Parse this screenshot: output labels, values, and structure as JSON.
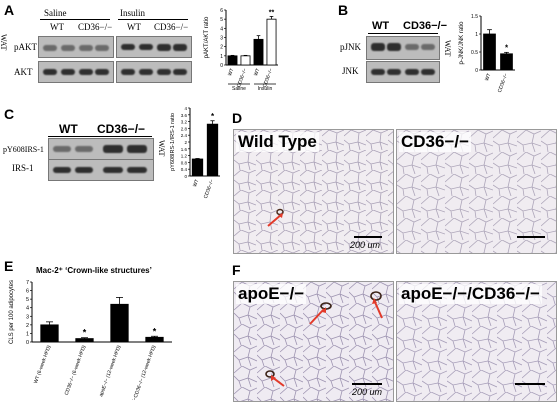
{
  "panels": {
    "A": {
      "label": "A",
      "blot_headers": [
        "Saline",
        "Insulin"
      ],
      "lane_labels": [
        "WT",
        "CD36−/−",
        "WT",
        "CD36−/−"
      ],
      "side_label": "WAT",
      "rows": [
        "pAKT",
        "AKT"
      ],
      "chart_ylabel": "pAKT/AKT ratio",
      "chart_group_labels": [
        "Saline",
        "Insulin"
      ],
      "chart_xticks": [
        "WT",
        "CD36−/−",
        "WT",
        "CD36−/−"
      ]
    },
    "B": {
      "label": "B",
      "lane_labels": [
        "WT",
        "CD36−/−"
      ],
      "side_label": "WAT",
      "rows": [
        "pJNK",
        "JNK"
      ],
      "chart_ylabel": "p-JNK/JNK ratio",
      "chart_xticks": [
        "WT",
        "CD36−/−"
      ]
    },
    "C": {
      "label": "C",
      "lane_labels": [
        "WT",
        "CD36−/−"
      ],
      "side_label": "WAT",
      "rows": [
        "pY608IRS-1",
        "IRS-1"
      ],
      "chart_ylabel": "pY608IRS-1/IRS-1 ratio",
      "chart_xticks": [
        "WT",
        "CD36−/−"
      ]
    },
    "D": {
      "label": "D",
      "titles": [
        "Wild Type",
        "CD36−/−"
      ],
      "scale_text": "200 um"
    },
    "E": {
      "label": "E",
      "title": "Mac-2⁺ ‘Crown-like structures’",
      "ylabel": "CLS per 100 adipocytes",
      "xticks": [
        "WT (6-week HFD)",
        "CD36−/− (6-week HFD)",
        "apoE−/− (12-week HFD)",
        "apoE−/−CD36−/− (12-week HFD)"
      ]
    },
    "F": {
      "label": "F",
      "titles": [
        "apoE−/−",
        "apoE−/−/CD36−/−"
      ],
      "scale_text": "200 um"
    }
  },
  "chart_data": [
    {
      "id": "A",
      "type": "bar",
      "title": "",
      "ylabel": "pAKT/AKT ratio",
      "categories": [
        "WT",
        "CD36−/−",
        "WT",
        "CD36−/−"
      ],
      "groups": [
        "Saline",
        "Saline",
        "Insulin",
        "Insulin"
      ],
      "values": [
        1.0,
        1.0,
        2.8,
        5.0
      ],
      "errors": [
        0.05,
        0.05,
        0.4,
        0.3
      ],
      "fills": [
        "#000000",
        "#ffffff",
        "#000000",
        "#ffffff"
      ],
      "ylim": [
        0,
        6
      ],
      "yticks": [
        0,
        1,
        2,
        3,
        4,
        5,
        6
      ],
      "annotations": [
        {
          "index": 3,
          "text": "**"
        }
      ]
    },
    {
      "id": "B",
      "type": "bar",
      "title": "",
      "ylabel": "p-JNK/JNK ratio",
      "categories": [
        "WT",
        "CD36−/−"
      ],
      "values": [
        1.0,
        0.45
      ],
      "errors": [
        0.12,
        0.04
      ],
      "fills": [
        "#000000",
        "#000000"
      ],
      "ylim": [
        0,
        1.5
      ],
      "yticks": [
        0.0,
        0.5,
        1.0,
        1.5
      ],
      "annotations": [
        {
          "index": 1,
          "text": "*"
        }
      ]
    },
    {
      "id": "C",
      "type": "bar",
      "title": "",
      "ylabel": "pY608IRS-1/IRS-1 ratio",
      "categories": [
        "WT",
        "CD36−/−"
      ],
      "values": [
        1.0,
        3.05
      ],
      "errors": [
        0.03,
        0.2
      ],
      "fills": [
        "#000000",
        "#000000"
      ],
      "ylim": [
        0,
        4
      ],
      "yticks": [
        0.0,
        0.4,
        0.8,
        1.2,
        1.6,
        2.0,
        2.4,
        2.8,
        3.2,
        3.6,
        4.0
      ],
      "annotations": [
        {
          "index": 1,
          "text": "*"
        }
      ]
    },
    {
      "id": "E",
      "type": "bar",
      "title": "Mac-2⁺ ‘Crown-like structures’",
      "ylabel": "CLS per 100 adipocytes",
      "categories": [
        "WT (6-week HFD)",
        "CD36−/− (6-week HFD)",
        "apoE−/− (12-week HFD)",
        "apoE−/−CD36−/− (12-week HFD)"
      ],
      "values": [
        2.0,
        0.4,
        4.4,
        0.55
      ],
      "errors": [
        0.35,
        0.1,
        0.8,
        0.12
      ],
      "fills": [
        "#000000",
        "#000000",
        "#000000",
        "#000000"
      ],
      "ylim": [
        0,
        7
      ],
      "yticks": [
        0,
        1,
        2,
        3,
        4,
        5,
        6,
        7
      ],
      "annotations": [
        {
          "index": 1,
          "text": "*"
        },
        {
          "index": 3,
          "text": "*"
        }
      ]
    }
  ]
}
